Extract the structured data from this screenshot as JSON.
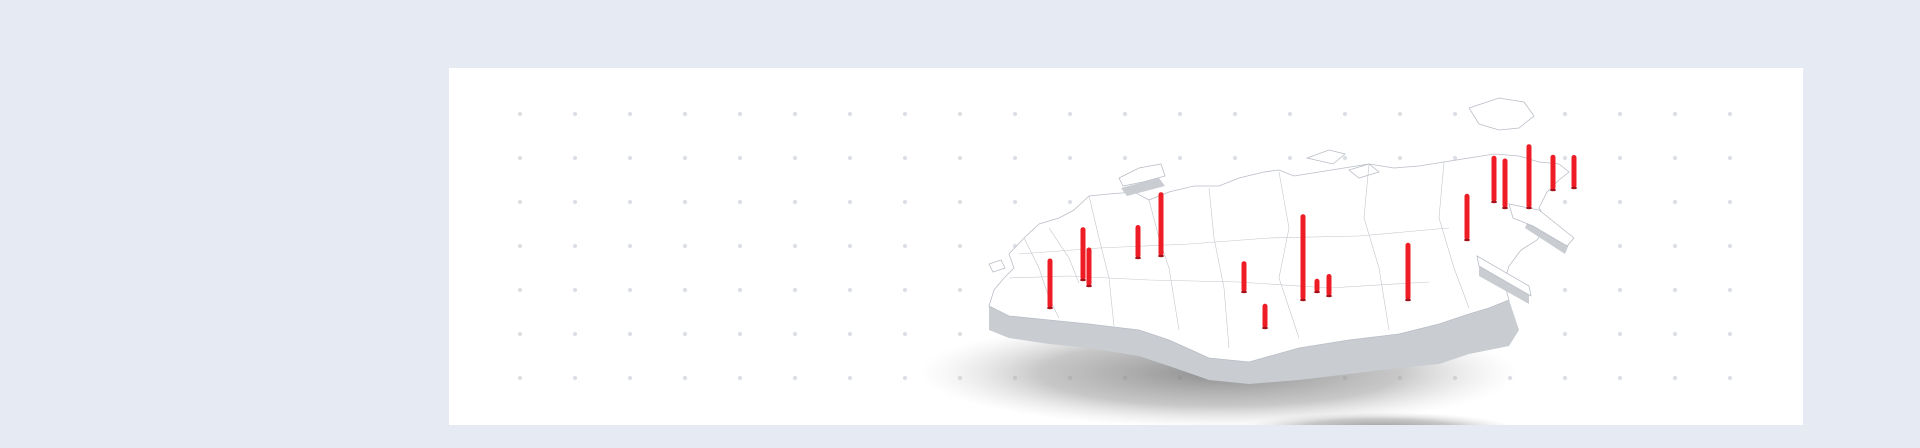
{
  "colors": {
    "page_background": "#e6ebf3",
    "card_background": "#ffffff",
    "marker": "#ee1c25",
    "dot_grid": "#dcdfe4"
  },
  "map": {
    "subject": "russia-regions-3d-map",
    "markers": [
      {
        "id": "m1",
        "value": 0.45
      },
      {
        "id": "m2",
        "value": 0.48
      },
      {
        "id": "m3",
        "value": 0.35
      },
      {
        "id": "m4",
        "value": 0.3
      },
      {
        "id": "m5",
        "value": 0.58
      },
      {
        "id": "m6",
        "value": 0.28
      },
      {
        "id": "m7",
        "value": 0.22
      },
      {
        "id": "m8",
        "value": 0.12
      },
      {
        "id": "m9",
        "value": 0.78
      },
      {
        "id": "m10",
        "value": 0.2
      },
      {
        "id": "m11",
        "value": 0.52
      },
      {
        "id": "m12",
        "value": 0.42
      },
      {
        "id": "m13",
        "value": 0.42
      },
      {
        "id": "m14",
        "value": 0.45
      },
      {
        "id": "m15",
        "value": 0.32
      },
      {
        "id": "m16",
        "value": 0.3
      },
      {
        "id": "m17",
        "value": 0.58
      }
    ]
  }
}
